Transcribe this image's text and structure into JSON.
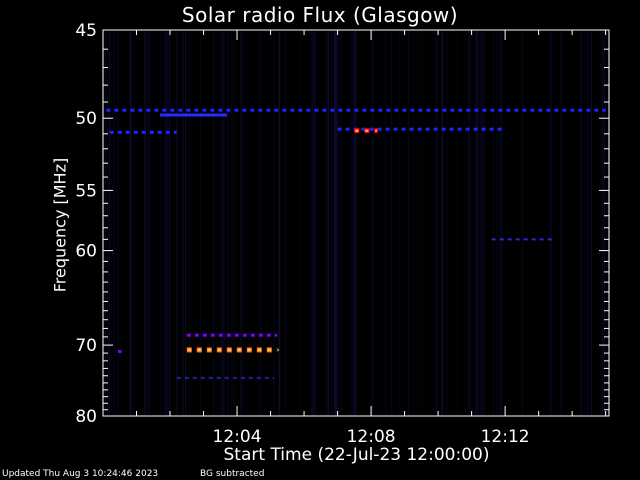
{
  "chart_data": {
    "type": "heatmap",
    "title": "Solar radio Flux (Glasgow)",
    "xlabel": "Start Time (22-Jul-23 12:00:00)",
    "ylabel": "Frequency [MHz]",
    "x_unit": "minutes after 12:00:00",
    "xlim": [
      0,
      15.1
    ],
    "ylim": [
      45,
      80
    ],
    "y_scale": "reciprocal",
    "x_ticks": [
      {
        "value": 4,
        "label": "12:04"
      },
      {
        "value": 8,
        "label": "12:08"
      },
      {
        "value": 12,
        "label": "12:12"
      }
    ],
    "y_ticks": [
      {
        "value": 45,
        "label": "45"
      },
      {
        "value": 50,
        "label": "50"
      },
      {
        "value": 55,
        "label": "55"
      },
      {
        "value": 60,
        "label": "60"
      },
      {
        "value": 70,
        "label": "70"
      },
      {
        "value": 80,
        "label": "80"
      }
    ],
    "colormap": [
      "#000010",
      "#1a1a6e",
      "#3322ff",
      "#8800ff",
      "#ff0000",
      "#ffaa33"
    ],
    "features": [
      {
        "name": "band-49.5",
        "freq": 49.5,
        "x_start": 0.1,
        "x_end": 15.0,
        "level": "medium",
        "color": "#2222ff"
      },
      {
        "name": "band-50.9",
        "freq": 50.9,
        "x_start": 0.2,
        "x_end": 2.2,
        "level": "medium",
        "color": "#2222ff"
      },
      {
        "name": "burst-49.8",
        "freq": 49.8,
        "x_start": 1.7,
        "x_end": 3.7,
        "level": "medium",
        "color": "#2a2aff"
      },
      {
        "name": "band-50.7",
        "freq": 50.7,
        "x_start": 7.0,
        "x_end": 12.0,
        "level": "medium",
        "color": "#2222ff"
      },
      {
        "name": "burst-50.8",
        "freq": 50.8,
        "x_start": 7.5,
        "x_end": 8.2,
        "level": "high",
        "color": "#ff0000"
      },
      {
        "name": "band-59",
        "freq": 59.0,
        "x_start": 11.6,
        "x_end": 13.5,
        "level": "low",
        "color": "#2a2ae0"
      },
      {
        "name": "band-68.8",
        "freq": 68.8,
        "x_start": 2.5,
        "x_end": 5.2,
        "level": "medium",
        "color": "#7a00ff"
      },
      {
        "name": "band-70.6",
        "freq": 70.6,
        "x_start": 2.5,
        "x_end": 5.2,
        "level": "high",
        "color": "#ff7a1a"
      },
      {
        "name": "band-74.3",
        "freq": 74.3,
        "x_start": 2.2,
        "x_end": 5.1,
        "level": "low",
        "color": "#2222aa"
      },
      {
        "name": "spot-70.8",
        "freq": 70.8,
        "x_start": 0.45,
        "x_end": 0.55,
        "level": "medium",
        "color": "#7a00ff"
      }
    ]
  },
  "footer": {
    "updated": "Updated Thu Aug  3 10:24:46 2023",
    "note": "BG subtracted"
  }
}
